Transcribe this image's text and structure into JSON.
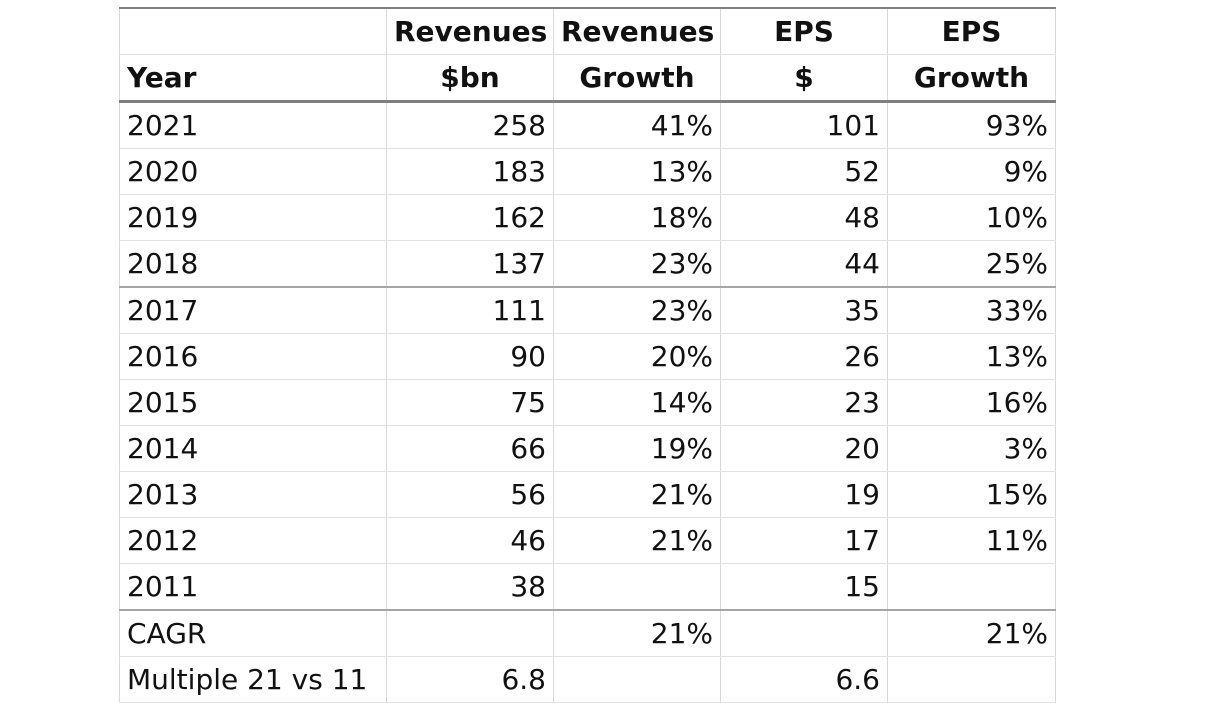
{
  "header": {
    "row1": [
      "",
      "Revenues",
      "Revenues",
      "EPS",
      "EPS"
    ],
    "row2": [
      "Year",
      "$bn",
      "Growth",
      "$",
      "Growth"
    ]
  },
  "rows": [
    {
      "year": "2021",
      "revenues": "258",
      "rev_growth": "41%",
      "eps": "101",
      "eps_growth": "93%"
    },
    {
      "year": "2020",
      "revenues": "183",
      "rev_growth": "13%",
      "eps": "52",
      "eps_growth": "9%"
    },
    {
      "year": "2019",
      "revenues": "162",
      "rev_growth": "18%",
      "eps": "48",
      "eps_growth": "10%"
    },
    {
      "year": "2018",
      "revenues": "137",
      "rev_growth": "23%",
      "eps": "44",
      "eps_growth": "25%"
    },
    {
      "year": "2017",
      "revenues": "111",
      "rev_growth": "23%",
      "eps": "35",
      "eps_growth": "33%"
    },
    {
      "year": "2016",
      "revenues": "90",
      "rev_growth": "20%",
      "eps": "26",
      "eps_growth": "13%"
    },
    {
      "year": "2015",
      "revenues": "75",
      "rev_growth": "14%",
      "eps": "23",
      "eps_growth": "16%"
    },
    {
      "year": "2014",
      "revenues": "66",
      "rev_growth": "19%",
      "eps": "20",
      "eps_growth": "3%"
    },
    {
      "year": "2013",
      "revenues": "56",
      "rev_growth": "21%",
      "eps": "19",
      "eps_growth": "15%"
    },
    {
      "year": "2012",
      "revenues": "46",
      "rev_growth": "21%",
      "eps": "17",
      "eps_growth": "11%"
    },
    {
      "year": "2011",
      "revenues": "38",
      "rev_growth": "",
      "eps": "15",
      "eps_growth": ""
    }
  ],
  "summary": [
    {
      "label": "CAGR",
      "revenues": "",
      "rev_growth": "21%",
      "eps": "",
      "eps_growth": "21%"
    },
    {
      "label": "Multiple 21 vs 11",
      "revenues": "6.8",
      "rev_growth": "",
      "eps": "6.6",
      "eps_growth": ""
    }
  ]
}
